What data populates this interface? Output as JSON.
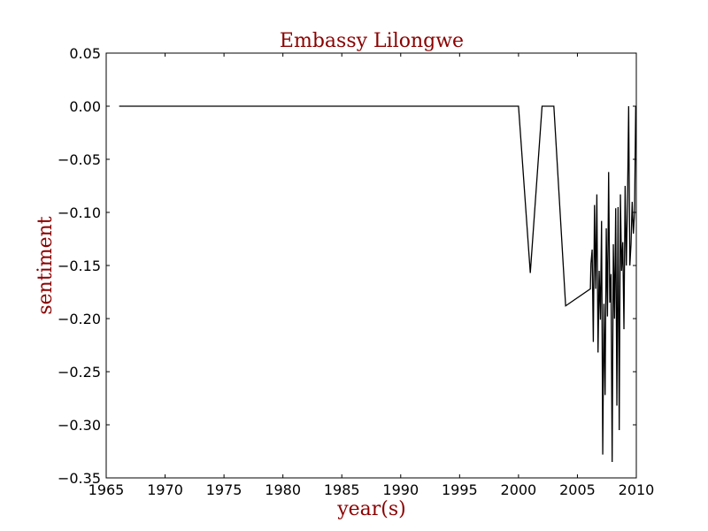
{
  "chart_data": {
    "type": "line",
    "title": "Embassy Lilongwe",
    "xlabel": "year(s)",
    "ylabel": "sentiment",
    "xlim": [
      1965,
      2010
    ],
    "ylim": [
      -0.35,
      0.05
    ],
    "xticks": [
      1965,
      1970,
      1975,
      1980,
      1985,
      1990,
      1995,
      2000,
      2005,
      2010
    ],
    "yticks": [
      0.05,
      0.0,
      -0.05,
      -0.1,
      -0.15,
      -0.2,
      -0.25,
      -0.3,
      -0.35
    ],
    "xtick_labels": [
      "1965",
      "1970",
      "1975",
      "1980",
      "1985",
      "1990",
      "1995",
      "2000",
      "2005",
      "2010"
    ],
    "ytick_labels": [
      "0.05",
      "0.00",
      "−0.05",
      "−0.10",
      "−0.15",
      "−0.20",
      "−0.25",
      "−0.30",
      "−0.35"
    ],
    "grid": false,
    "line_color": "#000000",
    "title_color": "#8b0000",
    "series": [
      {
        "x": [
          1966.1,
          2000.0,
          2001.0,
          2002.0,
          2003.0,
          2004.0,
          2006.1,
          2006.15,
          2006.25,
          2006.35,
          2006.45,
          2006.55,
          2006.65,
          2006.75,
          2006.85,
          2006.95,
          2007.05,
          2007.15,
          2007.25,
          2007.35,
          2007.45,
          2007.55,
          2007.65,
          2007.75,
          2007.85,
          2007.95,
          2008.05,
          2008.15,
          2008.25,
          2008.35,
          2008.45,
          2008.55,
          2008.65,
          2008.75,
          2008.85,
          2008.95,
          2009.05,
          2009.15,
          2009.25,
          2009.35,
          2009.45,
          2009.55,
          2009.65,
          2009.75,
          2009.85,
          2009.95
        ],
        "y": [
          0.0,
          0.0,
          -0.157,
          0.0,
          0.0,
          -0.188,
          -0.172,
          -0.148,
          -0.135,
          -0.222,
          -0.093,
          -0.172,
          -0.083,
          -0.232,
          -0.155,
          -0.201,
          -0.108,
          -0.328,
          -0.186,
          -0.272,
          -0.115,
          -0.198,
          -0.062,
          -0.185,
          -0.158,
          -0.335,
          -0.13,
          -0.2,
          -0.096,
          -0.282,
          -0.095,
          -0.305,
          -0.083,
          -0.155,
          -0.128,
          -0.21,
          -0.075,
          -0.15,
          -0.09,
          0.0,
          -0.15,
          -0.13,
          -0.09,
          -0.12,
          -0.1,
          0.0
        ]
      }
    ]
  }
}
